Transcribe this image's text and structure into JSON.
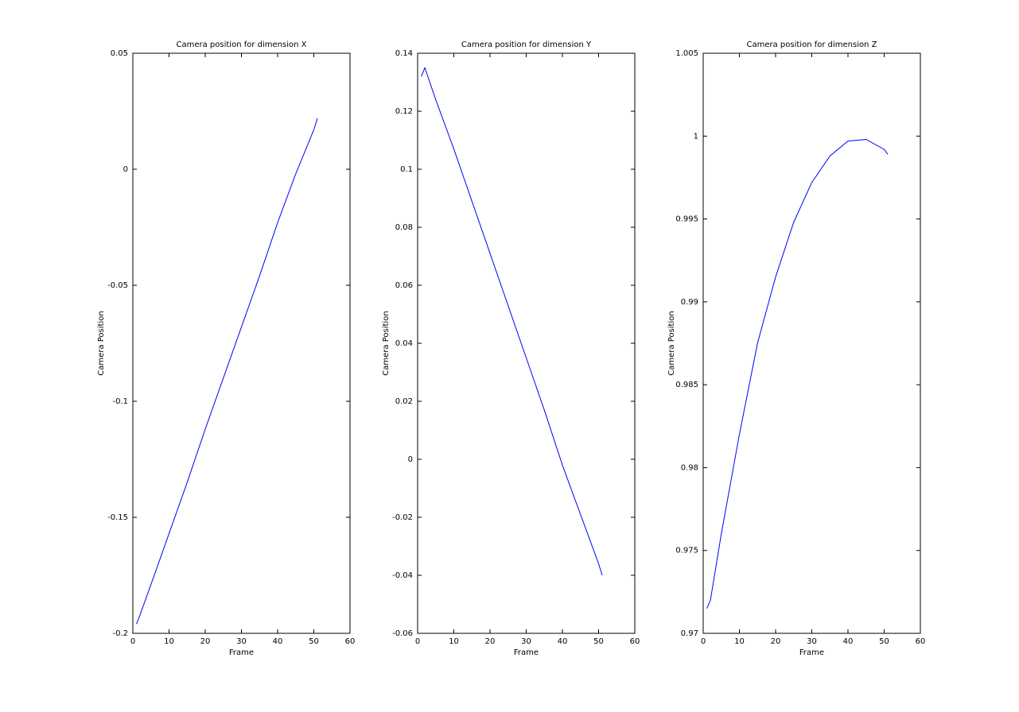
{
  "chart_data": [
    {
      "type": "line",
      "title": "Camera position for dimension X",
      "xlabel": "Frame",
      "ylabel": "Camera Position",
      "x": [
        1,
        2,
        5,
        10,
        15,
        20,
        25,
        30,
        35,
        40,
        45,
        50,
        51
      ],
      "series": [
        {
          "color": "#0000ff",
          "values": [
            -0.196,
            -0.192,
            -0.179,
            -0.157,
            -0.135,
            -0.112,
            -0.09,
            -0.068,
            -0.046,
            -0.023,
            -0.002,
            0.017,
            0.022
          ]
        }
      ],
      "xlim": [
        0,
        60
      ],
      "xticks": [
        0,
        10,
        20,
        30,
        40,
        50,
        60
      ],
      "ylim": [
        -0.2,
        0.05
      ],
      "yticks": [
        -0.2,
        -0.15,
        -0.1,
        -0.05,
        0,
        0.05
      ]
    },
    {
      "type": "line",
      "title": "Camera position for dimension Y",
      "xlabel": "Frame",
      "ylabel": "Camera Position",
      "x": [
        1,
        2,
        5,
        10,
        15,
        20,
        25,
        30,
        35,
        40,
        45,
        50,
        51
      ],
      "series": [
        {
          "color": "#0000ff",
          "values": [
            0.132,
            0.135,
            0.124,
            0.107,
            0.089,
            0.071,
            0.053,
            0.035,
            0.017,
            -0.002,
            -0.019,
            -0.036,
            -0.04
          ]
        }
      ],
      "xlim": [
        0,
        60
      ],
      "xticks": [
        0,
        10,
        20,
        30,
        40,
        50,
        60
      ],
      "ylim": [
        -0.06,
        0.14
      ],
      "yticks": [
        -0.06,
        -0.04,
        -0.02,
        0,
        0.02,
        0.04,
        0.06,
        0.08,
        0.1,
        0.12,
        0.14
      ]
    },
    {
      "type": "line",
      "title": "Camera position for dimension Z",
      "xlabel": "Frame",
      "ylabel": "Camera Position",
      "x": [
        1,
        2,
        5,
        10,
        15,
        20,
        25,
        30,
        35,
        40,
        45,
        50,
        51
      ],
      "series": [
        {
          "color": "#0000ff",
          "values": [
            0.9715,
            0.972,
            0.976,
            0.982,
            0.9875,
            0.9915,
            0.9948,
            0.9972,
            0.9988,
            0.9997,
            0.9998,
            0.9992,
            0.9989
          ]
        }
      ],
      "xlim": [
        0,
        60
      ],
      "xticks": [
        0,
        10,
        20,
        30,
        40,
        50,
        60
      ],
      "ylim": [
        0.97,
        1.005
      ],
      "yticks": [
        0.97,
        0.975,
        0.98,
        0.985,
        0.99,
        0.995,
        1,
        1.005
      ]
    }
  ]
}
